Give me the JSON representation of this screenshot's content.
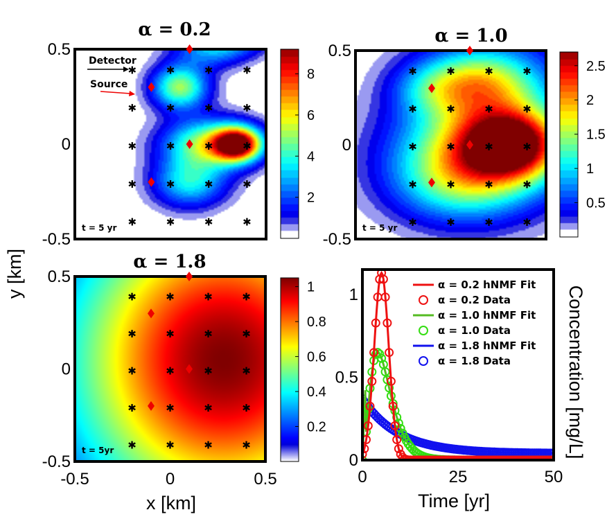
{
  "colors": {
    "source": "#ee0000",
    "detector": "#000000",
    "fit_02": "#ee1111",
    "fit_10": "#55bb22",
    "fit_18": "#1111ee",
    "data_02": "#ee1111",
    "data_10": "#33dd11",
    "data_18": "#1111ee"
  },
  "labels": {
    "y_axis": "y [km]",
    "x_axis": "x [km]",
    "detector": "Detector",
    "source": "Source"
  },
  "chart_data": [
    {
      "type": "heatmap",
      "title": "α = 0.2",
      "time_label": "t = 5 yr",
      "xlim": [
        -0.5,
        0.5
      ],
      "ylim": [
        -0.5,
        0.5
      ],
      "xticks": [],
      "yticks": [
        "0.5",
        "0",
        "-0.5"
      ],
      "colorbar": {
        "min": 0,
        "max": 9.2,
        "ticks": [
          "8",
          "6",
          "4",
          "2"
        ],
        "tick_values": [
          8,
          6,
          4,
          2
        ]
      },
      "sources": [
        [
          0.1,
          0.5
        ],
        [
          -0.1,
          0.3
        ],
        [
          0.1,
          0.0
        ],
        [
          -0.1,
          -0.2
        ]
      ],
      "detectors": [
        [
          -0.2,
          0.4
        ],
        [
          0.0,
          0.4
        ],
        [
          0.2,
          0.4
        ],
        [
          0.4,
          0.4
        ],
        [
          -0.2,
          0.2
        ],
        [
          0.0,
          0.2
        ],
        [
          0.2,
          0.2
        ],
        [
          0.4,
          0.2
        ],
        [
          -0.2,
          0.0
        ],
        [
          0.0,
          0.0
        ],
        [
          0.2,
          0.0
        ],
        [
          0.4,
          0.0
        ],
        [
          -0.2,
          -0.2
        ],
        [
          0.0,
          -0.2
        ],
        [
          0.2,
          -0.2
        ],
        [
          0.4,
          -0.2
        ],
        [
          -0.2,
          -0.4
        ],
        [
          0.0,
          -0.4
        ],
        [
          0.2,
          -0.4
        ],
        [
          0.4,
          -0.4
        ]
      ],
      "plumes": [
        [
          0.35,
          0.0,
          9.0,
          0.085,
          0.06
        ],
        [
          0.05,
          0.3,
          5.0,
          0.1,
          0.08
        ],
        [
          0.2,
          0.0,
          5.2,
          0.16,
          0.09
        ],
        [
          0.1,
          -0.2,
          3.6,
          0.13,
          0.09
        ],
        [
          0.2,
          0.5,
          2.5,
          0.13,
          0.07
        ],
        [
          0.35,
          0.55,
          2.0,
          0.12,
          0.06
        ]
      ]
    },
    {
      "type": "heatmap",
      "title": "α = 1.0",
      "time_label": "t = 5 yr",
      "xlim": [
        -0.5,
        0.5
      ],
      "ylim": [
        -0.5,
        0.5
      ],
      "xticks": [],
      "yticks": [
        "0.5",
        "0",
        "-0.5"
      ],
      "colorbar": {
        "min": 0,
        "max": 2.7,
        "ticks": [
          "2.5",
          "2",
          "1.5",
          "1",
          "0.5"
        ],
        "tick_values": [
          2.5,
          2,
          1.5,
          1,
          0.5
        ]
      },
      "sources": [
        [
          0.1,
          0.5
        ],
        [
          -0.1,
          0.3
        ],
        [
          0.1,
          0.0
        ],
        [
          -0.1,
          -0.2
        ]
      ],
      "detectors": [
        [
          -0.2,
          0.4
        ],
        [
          0.0,
          0.4
        ],
        [
          0.2,
          0.4
        ],
        [
          0.4,
          0.4
        ],
        [
          -0.2,
          0.2
        ],
        [
          0.0,
          0.2
        ],
        [
          0.2,
          0.2
        ],
        [
          0.4,
          0.2
        ],
        [
          -0.2,
          0.0
        ],
        [
          0.0,
          0.0
        ],
        [
          0.2,
          0.0
        ],
        [
          0.4,
          0.0
        ],
        [
          -0.2,
          -0.2
        ],
        [
          0.0,
          -0.2
        ],
        [
          0.2,
          -0.2
        ],
        [
          0.4,
          -0.2
        ],
        [
          -0.2,
          -0.4
        ],
        [
          0.0,
          -0.4
        ],
        [
          0.2,
          -0.4
        ],
        [
          0.4,
          -0.4
        ]
      ],
      "plumes": [
        [
          0.32,
          0.0,
          2.1,
          0.17,
          0.12
        ],
        [
          0.15,
          0.33,
          1.2,
          0.2,
          0.12
        ],
        [
          0.15,
          0.0,
          1.2,
          0.3,
          0.18
        ],
        [
          0.05,
          -0.2,
          1.0,
          0.25,
          0.15
        ],
        [
          0.25,
          0.2,
          0.6,
          0.3,
          0.3
        ],
        [
          -0.1,
          0.3,
          0.5,
          0.15,
          0.1
        ]
      ]
    },
    {
      "type": "heatmap",
      "title": "α = 1.8",
      "time_label": "t = 5yr",
      "xlim": [
        -0.5,
        0.5
      ],
      "ylim": [
        -0.5,
        0.5
      ],
      "xticks": [
        "-0.5",
        "0",
        "0.5"
      ],
      "yticks": [
        "0.5",
        "0",
        "-0.5"
      ],
      "colorbar": {
        "min": 0,
        "max": 1.05,
        "ticks": [
          "1",
          "0.8",
          "0.6",
          "0.4",
          "0.2"
        ],
        "tick_values": [
          1.0,
          0.8,
          0.6,
          0.4,
          0.2
        ]
      },
      "sources": [
        [
          0.1,
          0.5
        ],
        [
          -0.1,
          0.3
        ],
        [
          0.1,
          0.0
        ],
        [
          -0.1,
          -0.2
        ]
      ],
      "detectors": [
        [
          -0.2,
          0.4
        ],
        [
          0.0,
          0.4
        ],
        [
          0.2,
          0.4
        ],
        [
          0.4,
          0.4
        ],
        [
          -0.2,
          0.2
        ],
        [
          0.0,
          0.2
        ],
        [
          0.2,
          0.2
        ],
        [
          0.4,
          0.2
        ],
        [
          -0.2,
          0.0
        ],
        [
          0.0,
          0.0
        ],
        [
          0.2,
          0.0
        ],
        [
          0.4,
          0.0
        ],
        [
          -0.2,
          -0.2
        ],
        [
          0.0,
          -0.2
        ],
        [
          0.2,
          -0.2
        ],
        [
          0.4,
          -0.2
        ],
        [
          -0.2,
          -0.4
        ],
        [
          0.0,
          -0.4
        ],
        [
          0.2,
          -0.4
        ],
        [
          0.4,
          -0.4
        ]
      ],
      "plumes": [
        [
          0.28,
          0.05,
          1.05,
          0.58,
          0.62
        ]
      ]
    },
    {
      "type": "line",
      "xlabel": "Time [yr]",
      "ylabel": "Concentration [mg/L]",
      "xlim": [
        0,
        50
      ],
      "ylim": [
        0,
        1.15
      ],
      "xticks": [
        "0",
        "25",
        "50"
      ],
      "yticks": [
        "0",
        "0.5",
        "1"
      ],
      "series": [
        {
          "name": "α = 0.2 hNMF Fit",
          "kind": "fit",
          "color": "#ee1111",
          "model": "peak",
          "peak_t": 5.0,
          "peak_v": 1.13,
          "width": 1.9
        },
        {
          "name": "α = 0.2 Data",
          "kind": "data",
          "color": "#ee1111",
          "model": "peak",
          "peak_t": 5.0,
          "peak_v": 1.13,
          "width": 1.9
        },
        {
          "name": "α = 1.0 hNMF Fit",
          "kind": "fit",
          "color": "#55bb22",
          "model": "gamma",
          "peak_t": 4.0,
          "peak_v": 0.65,
          "k": 2.1,
          "start": 0.0
        },
        {
          "name": "α = 1.0 Data",
          "kind": "data",
          "color": "#33dd11",
          "model": "gamma",
          "peak_t": 4.0,
          "peak_v": 0.65,
          "k": 2.1,
          "start": 0.0
        },
        {
          "name": "α = 1.8 hNMF Fit",
          "kind": "fit",
          "color": "#1111ee",
          "model": "decay",
          "v0": 0.37,
          "tau": 9.5,
          "floor": 0.04
        },
        {
          "name": "α = 1.8 Data",
          "kind": "data",
          "color": "#1111ee",
          "model": "decay",
          "v0": 0.37,
          "tau": 9.5,
          "floor": 0.04
        }
      ]
    }
  ]
}
